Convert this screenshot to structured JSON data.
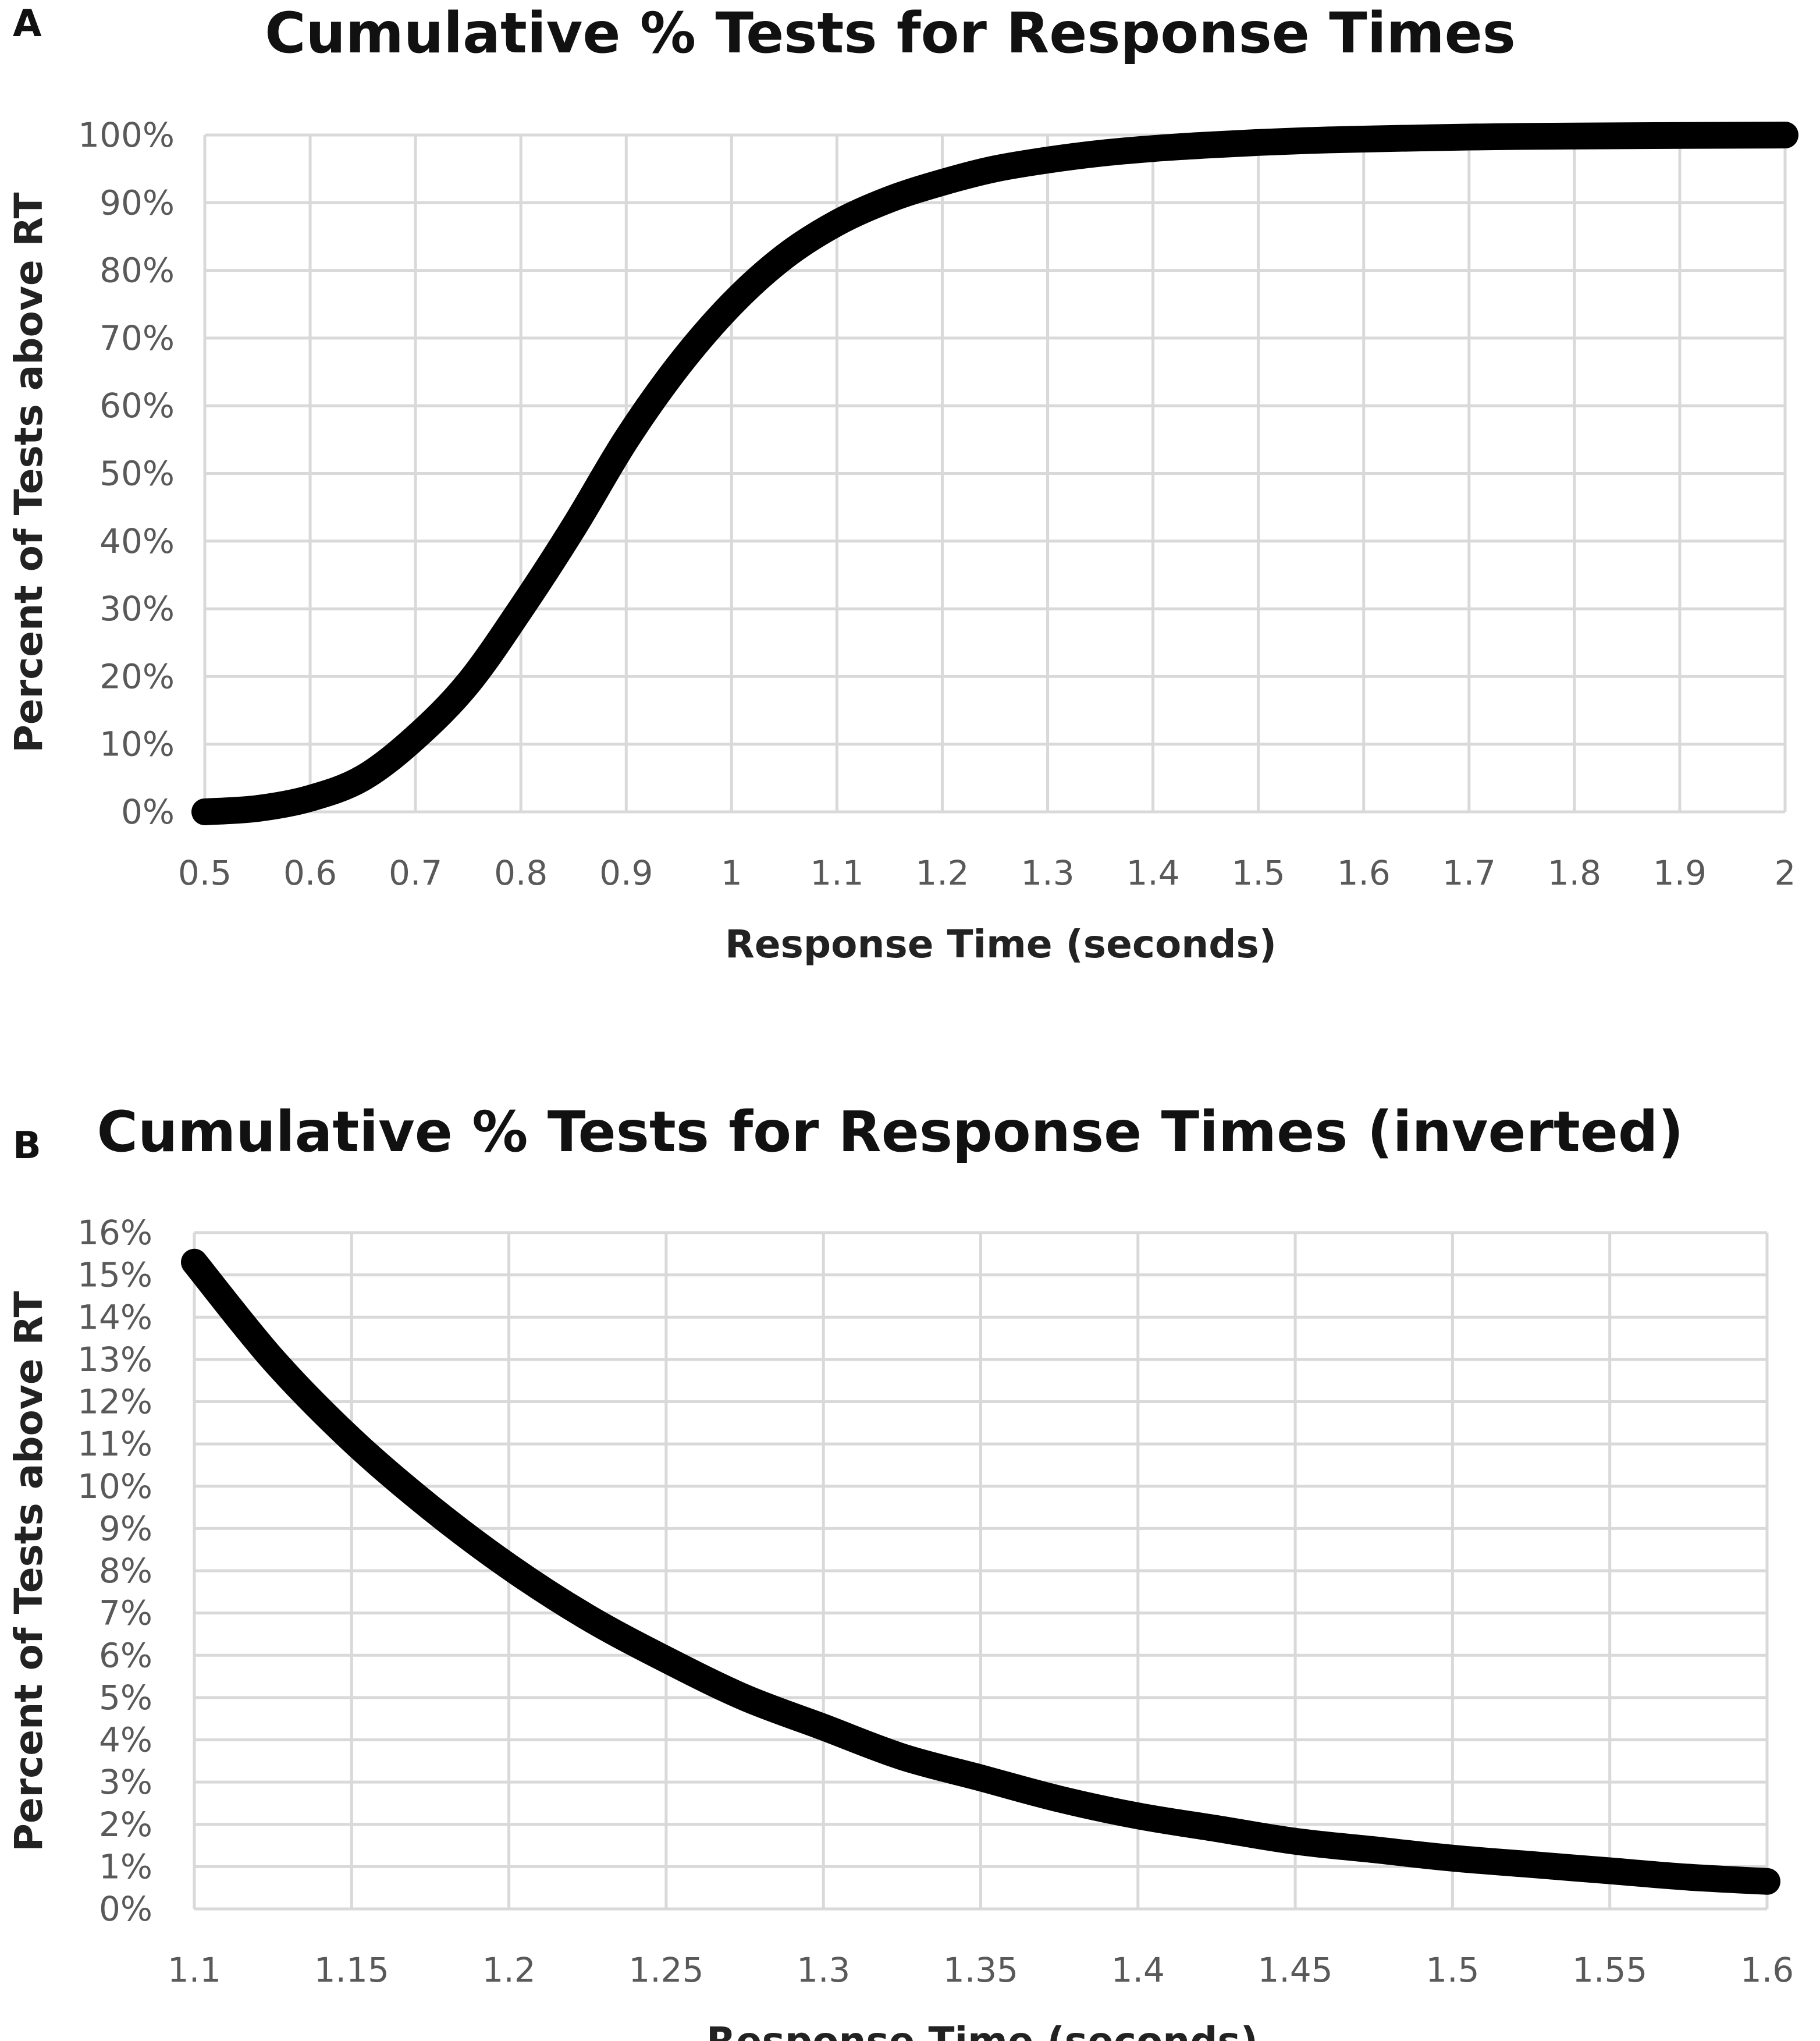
{
  "chart_data": [
    {
      "panel": "A",
      "type": "line",
      "title": "Cumulative % Tests for Response Times",
      "xlabel": "Response Time (seconds)",
      "ylabel": "Percent of Tests above RT",
      "xlim": [
        0.5,
        2
      ],
      "ylim": [
        0,
        100
      ],
      "x_ticks": [
        "0.5",
        "0.6",
        "0.7",
        "0.8",
        "0.9",
        "1",
        "1.1",
        "1.2",
        "1.3",
        "1.4",
        "1.5",
        "1.6",
        "1.7",
        "1.8",
        "1.9",
        "2"
      ],
      "y_ticks": [
        "0%",
        "10%",
        "20%",
        "30%",
        "40%",
        "50%",
        "60%",
        "70%",
        "80%",
        "90%",
        "100%"
      ],
      "grid": true,
      "legend": "none",
      "series": [
        {
          "color": "#000000",
          "x": [
            0.5,
            0.55,
            0.6,
            0.65,
            0.7,
            0.75,
            0.8,
            0.85,
            0.9,
            0.95,
            1.0,
            1.05,
            1.1,
            1.15,
            1.2,
            1.25,
            1.3,
            1.35,
            1.4,
            1.45,
            1.5,
            1.55,
            1.6,
            1.7,
            1.8,
            1.9,
            2.0
          ],
          "y": [
            0,
            0.5,
            2,
            5,
            11,
            19,
            30,
            42,
            55,
            66,
            75,
            82,
            87,
            90.5,
            93,
            95,
            96.3,
            97.3,
            98,
            98.5,
            98.9,
            99.2,
            99.4,
            99.7,
            99.85,
            99.93,
            100
          ]
        }
      ]
    },
    {
      "panel": "B",
      "type": "line",
      "title": "Cumulative % Tests for Response Times (inverted)",
      "xlabel": "Response Time (seconds)",
      "ylabel": "Percent of Tests above RT",
      "xlim": [
        1.1,
        1.6
      ],
      "ylim": [
        0,
        16
      ],
      "x_ticks": [
        "1.1",
        "1.15",
        "1.2",
        "1.25",
        "1.3",
        "1.35",
        "1.4",
        "1.45",
        "1.5",
        "1.55",
        "1.6"
      ],
      "y_ticks": [
        "0%",
        "1%",
        "2%",
        "3%",
        "4%",
        "5%",
        "6%",
        "7%",
        "8%",
        "9%",
        "10%",
        "11%",
        "12%",
        "13%",
        "14%",
        "15%",
        "16%"
      ],
      "grid": true,
      "legend": "none",
      "series": [
        {
          "color": "#000000",
          "x": [
            1.1,
            1.125,
            1.15,
            1.175,
            1.2,
            1.225,
            1.25,
            1.275,
            1.3,
            1.325,
            1.35,
            1.375,
            1.4,
            1.425,
            1.45,
            1.475,
            1.5,
            1.525,
            1.55,
            1.575,
            1.6
          ],
          "y": [
            15.3,
            13.0,
            11.1,
            9.5,
            8.1,
            6.9,
            5.9,
            5.0,
            4.3,
            3.6,
            3.1,
            2.6,
            2.2,
            1.9,
            1.6,
            1.4,
            1.2,
            1.05,
            0.9,
            0.75,
            0.65
          ]
        }
      ]
    }
  ]
}
